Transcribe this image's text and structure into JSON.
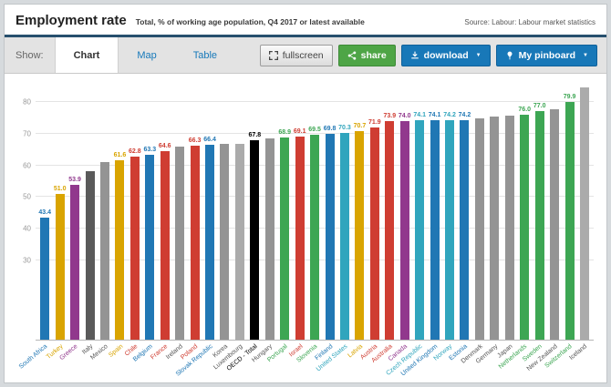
{
  "header": {
    "title": "Employment rate",
    "subtitle": "Total, % of working age population, Q4 2017 or latest available",
    "source": "Source: Labour: Labour market statistics"
  },
  "toolbar": {
    "show_label": "Show:",
    "tabs": [
      {
        "label": "Chart",
        "active": true
      },
      {
        "label": "Map",
        "active": false
      },
      {
        "label": "Table",
        "active": false
      }
    ],
    "buttons": {
      "fullscreen": "fullscreen",
      "share": "share",
      "download": "download",
      "pinboard": "My pinboard"
    }
  },
  "icons": {
    "fullscreen": "expand-arrows-icon",
    "share": "share-nodes-icon",
    "download": "download-tray-icon",
    "pinboard": "pushpin-icon",
    "caret": "▼"
  },
  "colors": {
    "accent_blue": "#1878b8",
    "share_green": "#4ea546",
    "header_rule": "#27506e",
    "toolbar_bg": "#e3e3e3"
  },
  "chart_data": {
    "type": "bar",
    "title": "Employment rate",
    "subtitle": "Total, % of working age population, Q4 2017 or latest available",
    "xlabel": "",
    "ylabel": "",
    "ylim": [
      5,
      86
    ],
    "yticks": [
      30,
      40,
      50,
      60,
      70,
      80
    ],
    "grid": true,
    "legend": "none",
    "categories": [
      "South Africa",
      "Turkey",
      "Greece",
      "Italy",
      "Mexico",
      "Spain",
      "Chile",
      "Belgium",
      "France",
      "Ireland",
      "Poland",
      "Slovak Republic",
      "Korea",
      "Luxembourg",
      "OECD - Total",
      "Hungary",
      "Portugal",
      "Israel",
      "Slovenia",
      "Finland",
      "United States",
      "Latvia",
      "Austria",
      "Australia",
      "Canada",
      "Czech Republic",
      "United Kingdom",
      "Norway",
      "Estonia",
      "Denmark",
      "Germany",
      "Japan",
      "Netherlands",
      "Sweden",
      "New Zealand",
      "Switzerland",
      "Iceland"
    ],
    "values": [
      43.4,
      51.0,
      53.9,
      58.0,
      61.0,
      61.6,
      62.8,
      63.3,
      64.6,
      65.9,
      66.3,
      66.4,
      66.7,
      66.9,
      67.8,
      68.4,
      68.9,
      69.1,
      69.5,
      69.8,
      70.3,
      70.7,
      71.9,
      73.9,
      74.0,
      74.1,
      74.1,
      74.2,
      74.2,
      74.8,
      75.3,
      75.7,
      76.0,
      77.0,
      77.8,
      79.9,
      84.6
    ],
    "labeled": [
      true,
      true,
      true,
      false,
      false,
      true,
      true,
      true,
      true,
      false,
      true,
      true,
      false,
      false,
      true,
      false,
      true,
      true,
      true,
      true,
      true,
      true,
      true,
      true,
      true,
      true,
      true,
      true,
      true,
      false,
      false,
      false,
      true,
      true,
      false,
      true,
      false
    ],
    "bar_colors": [
      "#2077b4",
      "#d9a400",
      "#91388d",
      "#5a5a5a",
      "#949494",
      "#d9a400",
      "#cf3d32",
      "#2077b4",
      "#cf3d32",
      "#949494",
      "#cf3d32",
      "#2077b4",
      "#949494",
      "#ababab",
      "#000000",
      "#949494",
      "#3da653",
      "#cf3d32",
      "#3da653",
      "#2077b4",
      "#30a5bd",
      "#d9a400",
      "#cf3d32",
      "#cf3d32",
      "#91388d",
      "#30a5bd",
      "#2077b4",
      "#30a5bd",
      "#2077b4",
      "#949494",
      "#949494",
      "#949494",
      "#3da653",
      "#3da653",
      "#949494",
      "#3da653",
      "#ababab"
    ]
  }
}
